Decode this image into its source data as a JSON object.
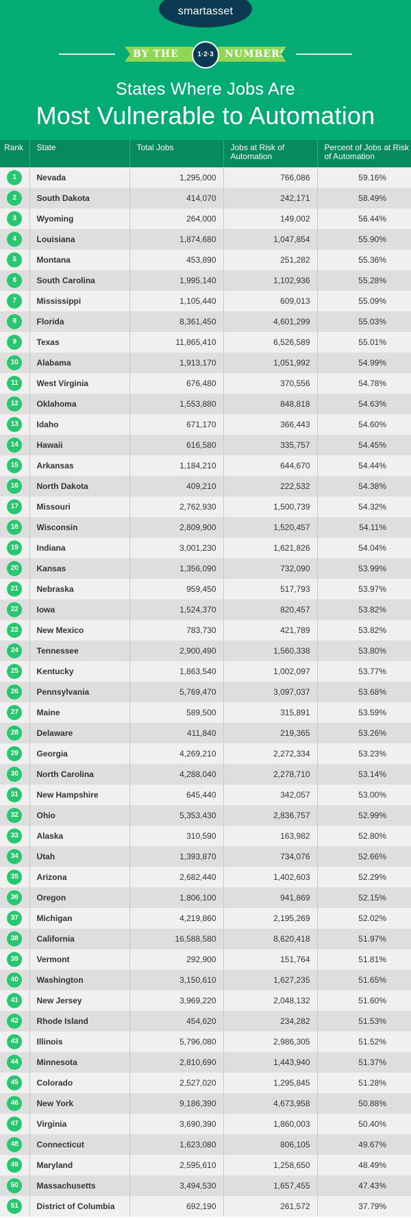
{
  "header": {
    "logo": "smartasset",
    "ribbon_left": "BY THE",
    "medallion": "1·2·3",
    "ribbon_right": "NUMBERS",
    "title_line1": "States Where Jobs Are",
    "title_line2": "Most Vulnerable to Automation",
    "colors": {
      "background": "#05ab74",
      "navy": "#0c3a52",
      "ribbon": "#8fd652"
    }
  },
  "table": {
    "columns": [
      "Rank",
      "State",
      "Total Jobs",
      "Jobs at Risk of Automation",
      "Percent of Jobs at Risk of Automation"
    ],
    "rows": [
      {
        "rank": "1",
        "state": "Nevada",
        "total": "1,295,000",
        "risk": "766,086",
        "pct": "59.16%"
      },
      {
        "rank": "2",
        "state": "South Dakota",
        "total": "414,070",
        "risk": "242,171",
        "pct": "58.49%"
      },
      {
        "rank": "3",
        "state": "Wyoming",
        "total": "264,000",
        "risk": "149,002",
        "pct": "56.44%"
      },
      {
        "rank": "4",
        "state": "Louisiana",
        "total": "1,874,680",
        "risk": "1,047,854",
        "pct": "55.90%"
      },
      {
        "rank": "5",
        "state": "Montana",
        "total": "453,890",
        "risk": "251,282",
        "pct": "55.36%"
      },
      {
        "rank": "6",
        "state": "South Carolina",
        "total": "1,995,140",
        "risk": "1,102,936",
        "pct": "55.28%"
      },
      {
        "rank": "7",
        "state": "Mississippi",
        "total": "1,105,440",
        "risk": "609,013",
        "pct": "55.09%"
      },
      {
        "rank": "8",
        "state": "Florida",
        "total": "8,361,450",
        "risk": "4,601,299",
        "pct": "55.03%"
      },
      {
        "rank": "9",
        "state": "Texas",
        "total": "11,865,410",
        "risk": "6,526,589",
        "pct": "55.01%"
      },
      {
        "rank": "10",
        "state": "Alabama",
        "total": "1,913,170",
        "risk": "1,051,992",
        "pct": "54.99%"
      },
      {
        "rank": "11",
        "state": "West Virginia",
        "total": "676,480",
        "risk": "370,556",
        "pct": "54.78%"
      },
      {
        "rank": "12",
        "state": "Oklahoma",
        "total": "1,553,880",
        "risk": "848,818",
        "pct": "54.63%"
      },
      {
        "rank": "13",
        "state": "Idaho",
        "total": "671,170",
        "risk": "366,443",
        "pct": "54.60%"
      },
      {
        "rank": "14",
        "state": "Hawaii",
        "total": "616,580",
        "risk": "335,757",
        "pct": "54.45%"
      },
      {
        "rank": "15",
        "state": "Arkansas",
        "total": "1,184,210",
        "risk": "644,670",
        "pct": "54.44%"
      },
      {
        "rank": "16",
        "state": "North Dakota",
        "total": "409,210",
        "risk": "222,532",
        "pct": "54.38%"
      },
      {
        "rank": "17",
        "state": "Missouri",
        "total": "2,762,930",
        "risk": "1,500,739",
        "pct": "54.32%"
      },
      {
        "rank": "18",
        "state": "Wisconsin",
        "total": "2,809,900",
        "risk": "1,520,457",
        "pct": "54.11%"
      },
      {
        "rank": "19",
        "state": "Indiana",
        "total": "3,001,230",
        "risk": "1,621,826",
        "pct": "54.04%"
      },
      {
        "rank": "20",
        "state": "Kansas",
        "total": "1,356,090",
        "risk": "732,090",
        "pct": "53.99%"
      },
      {
        "rank": "21",
        "state": "Nebraska",
        "total": "959,450",
        "risk": "517,793",
        "pct": "53.97%"
      },
      {
        "rank": "22",
        "state": "Iowa",
        "total": "1,524,370",
        "risk": "820,457",
        "pct": "53.82%"
      },
      {
        "rank": "22",
        "state": "New Mexico",
        "total": "783,730",
        "risk": "421,789",
        "pct": "53.82%"
      },
      {
        "rank": "24",
        "state": "Tennessee",
        "total": "2,900,490",
        "risk": "1,560,338",
        "pct": "53.80%"
      },
      {
        "rank": "25",
        "state": "Kentucky",
        "total": "1,863,540",
        "risk": "1,002,097",
        "pct": "53.77%"
      },
      {
        "rank": "26",
        "state": "Pennsylvania",
        "total": "5,769,470",
        "risk": "3,097,037",
        "pct": "53.68%"
      },
      {
        "rank": "27",
        "state": "Maine",
        "total": "589,500",
        "risk": "315,891",
        "pct": "53.59%"
      },
      {
        "rank": "28",
        "state": "Delaware",
        "total": "411,840",
        "risk": "219,365",
        "pct": "53.26%"
      },
      {
        "rank": "29",
        "state": "Georgia",
        "total": "4,269,210",
        "risk": "2,272,334",
        "pct": "53.23%"
      },
      {
        "rank": "30",
        "state": "North Carolina",
        "total": "4,288,040",
        "risk": "2,278,710",
        "pct": "53.14%"
      },
      {
        "rank": "31",
        "state": "New Hampshire",
        "total": "645,440",
        "risk": "342,057",
        "pct": "53.00%"
      },
      {
        "rank": "32",
        "state": "Ohio",
        "total": "5,353,430",
        "risk": "2,836,757",
        "pct": "52.99%"
      },
      {
        "rank": "33",
        "state": "Alaska",
        "total": "310,590",
        "risk": "163,982",
        "pct": "52.80%"
      },
      {
        "rank": "34",
        "state": "Utah",
        "total": "1,393,870",
        "risk": "734,076",
        "pct": "52.66%"
      },
      {
        "rank": "35",
        "state": "Arizona",
        "total": "2,682,440",
        "risk": "1,402,603",
        "pct": "52.29%"
      },
      {
        "rank": "36",
        "state": "Oregon",
        "total": "1,806,100",
        "risk": "941,869",
        "pct": "52.15%"
      },
      {
        "rank": "37",
        "state": "Michigan",
        "total": "4,219,860",
        "risk": "2,195,269",
        "pct": "52.02%"
      },
      {
        "rank": "38",
        "state": "California",
        "total": "16,588,580",
        "risk": "8,620,418",
        "pct": "51.97%"
      },
      {
        "rank": "39",
        "state": "Vermont",
        "total": "292,900",
        "risk": "151,764",
        "pct": "51.81%"
      },
      {
        "rank": "40",
        "state": "Washington",
        "total": "3,150,610",
        "risk": "1,627,235",
        "pct": "51.65%"
      },
      {
        "rank": "41",
        "state": "New Jersey",
        "total": "3,969,220",
        "risk": "2,048,132",
        "pct": "51.60%"
      },
      {
        "rank": "42",
        "state": "Rhode Island",
        "total": "454,620",
        "risk": "234,282",
        "pct": "51.53%"
      },
      {
        "rank": "43",
        "state": "Illinois",
        "total": "5,796,080",
        "risk": "2,986,305",
        "pct": "51.52%"
      },
      {
        "rank": "44",
        "state": "Minnesota",
        "total": "2,810,690",
        "risk": "1,443,940",
        "pct": "51.37%"
      },
      {
        "rank": "45",
        "state": "Colorado",
        "total": "2,527,020",
        "risk": "1,295,845",
        "pct": "51.28%"
      },
      {
        "rank": "46",
        "state": "New York",
        "total": "9,186,390",
        "risk": "4,673,958",
        "pct": "50.88%"
      },
      {
        "rank": "47",
        "state": "Virginia",
        "total": "3,690,390",
        "risk": "1,860,003",
        "pct": "50.40%"
      },
      {
        "rank": "48",
        "state": "Connecticut",
        "total": "1,623,080",
        "risk": "806,105",
        "pct": "49.67%"
      },
      {
        "rank": "49",
        "state": "Maryland",
        "total": "2,595,610",
        "risk": "1,258,650",
        "pct": "48.49%"
      },
      {
        "rank": "50",
        "state": "Massachusetts",
        "total": "3,494,530",
        "risk": "1,657,455",
        "pct": "47.43%"
      },
      {
        "rank": "51",
        "state": "District of Columbia",
        "total": "692,190",
        "risk": "261,572",
        "pct": "37.79%"
      }
    ]
  }
}
